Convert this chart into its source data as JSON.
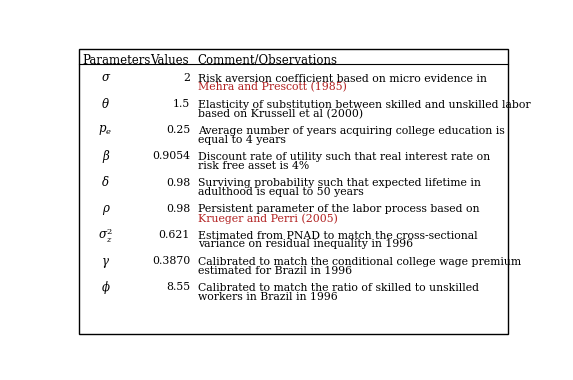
{
  "headers": [
    "Parameters",
    "Values",
    "Comment/Observations"
  ],
  "rows": [
    {
      "param": "σ",
      "value": "2",
      "comment_lines": [
        [
          {
            "text": "Risk aversion coefficient based on micro evidence in",
            "color": "#000000"
          }
        ],
        [
          {
            "text": "Mehra and Prescott (1985)",
            "color": "#b22222"
          }
        ]
      ]
    },
    {
      "param": "θ",
      "value": "1.5",
      "comment_lines": [
        [
          {
            "text": "Elasticity of substitution between skilled and unskilled labor",
            "color": "#000000"
          }
        ],
        [
          {
            "text": "based on Krussell et al (2000)",
            "color": "#000000"
          }
        ]
      ]
    },
    {
      "param": "p_e",
      "value": "0.25",
      "comment_lines": [
        [
          {
            "text": "Average number of years acquiring college education is",
            "color": "#000000"
          }
        ],
        [
          {
            "text": "equal to 4 years",
            "color": "#000000"
          }
        ]
      ]
    },
    {
      "param": "β",
      "value": "0.9054",
      "comment_lines": [
        [
          {
            "text": "Discount rate of utility such that real interest rate on",
            "color": "#000000"
          }
        ],
        [
          {
            "text": "risk free asset is 4%",
            "color": "#000000"
          }
        ]
      ]
    },
    {
      "param": "δ",
      "value": "0.98",
      "comment_lines": [
        [
          {
            "text": "Surviving probability such that expected lifetime in",
            "color": "#000000"
          }
        ],
        [
          {
            "text": "adulthood is equal to 50 years",
            "color": "#000000"
          }
        ]
      ]
    },
    {
      "param": "ρ",
      "value": "0.98",
      "comment_lines": [
        [
          {
            "text": "Persistent parameter of the labor process based on",
            "color": "#000000"
          }
        ],
        [
          {
            "text": "Krueger and Perri (2005)",
            "color": "#b22222"
          }
        ]
      ]
    },
    {
      "param": "σ_z2",
      "value": "0.621",
      "comment_lines": [
        [
          {
            "text": "Estimated from PNAD to match the cross-sectional",
            "color": "#000000"
          }
        ],
        [
          {
            "text": "variance on residual inequality in 1996",
            "color": "#000000"
          }
        ]
      ]
    },
    {
      "param": "γ",
      "value": "0.3870",
      "comment_lines": [
        [
          {
            "text": "Calibrated to match the conditional college wage premium",
            "color": "#000000"
          }
        ],
        [
          {
            "text": "estimated for Brazil in 1996",
            "color": "#000000"
          }
        ]
      ]
    },
    {
      "param": "ϕ",
      "value": "8.55",
      "comment_lines": [
        [
          {
            "text": "Calibrated to match the ratio of skilled to unskilled",
            "color": "#000000"
          }
        ],
        [
          {
            "text": "workers in Brazil in 1996",
            "color": "#000000"
          }
        ]
      ]
    }
  ],
  "background_color": "#ffffff",
  "border_color": "#000000",
  "text_color": "#000000",
  "header_fontsize": 8.5,
  "cell_fontsize": 7.8,
  "param_fontsize": 8.5
}
